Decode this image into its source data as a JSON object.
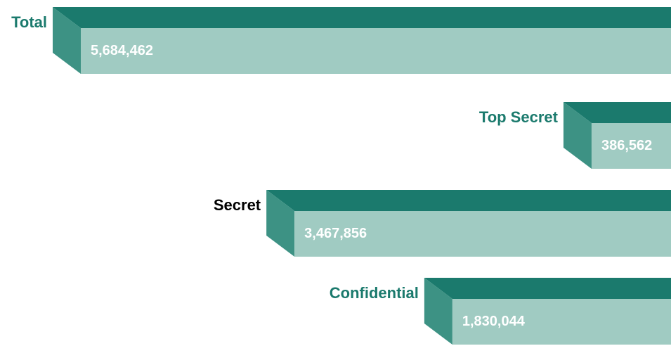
{
  "chart_data": {
    "type": "bar3d",
    "categories": [
      "Total",
      "Top Secret",
      "Secret",
      "Confidential"
    ],
    "values": [
      5684462,
      386562,
      3467856,
      1830044
    ],
    "value_labels": [
      "5,684,462",
      "386,562",
      "3,467,856",
      "1,830,044"
    ],
    "colors": {
      "top": "#1b7a6d",
      "side": "#3d9284",
      "front": "#a0cbc2"
    },
    "label_colors": [
      "#1b7a6d",
      "#1b7a6d",
      "#000000",
      "#1b7a6d"
    ]
  }
}
